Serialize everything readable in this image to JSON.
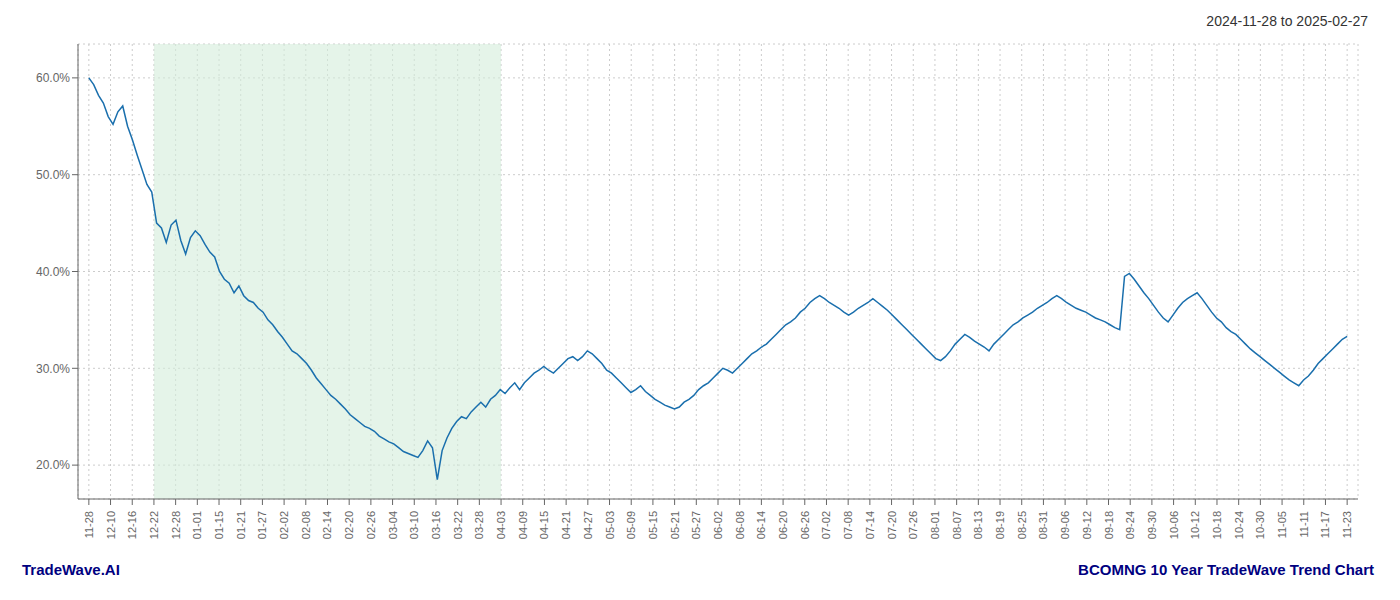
{
  "chart_data": {
    "type": "line",
    "title": "2024-11-28 to 2025-02-27",
    "annotations": [
      {
        "text": "TradeWave.AI",
        "color": "#000080"
      },
      {
        "text": "BCOMNG 10 Year TradeWave Trend Chart",
        "color": "#000080"
      }
    ],
    "color": "#1a6fad",
    "grid": true,
    "highlight": {
      "x": [
        3,
        19
      ],
      "color": "#d4edda"
    },
    "xlim": [
      -0.5,
      58.5
    ],
    "xticks": [
      {
        "value": 0,
        "label": "11-28"
      },
      {
        "value": 1,
        "label": "12-10"
      },
      {
        "value": 2,
        "label": "12-16"
      },
      {
        "value": 3,
        "label": "12-22"
      },
      {
        "value": 4,
        "label": "12-28"
      },
      {
        "value": 5,
        "label": "01-01"
      },
      {
        "value": 6,
        "label": "01-15"
      },
      {
        "value": 7,
        "label": "01-21"
      },
      {
        "value": 8,
        "label": "01-27"
      },
      {
        "value": 9,
        "label": "02-02"
      },
      {
        "value": 10,
        "label": "02-08"
      },
      {
        "value": 11,
        "label": "02-14"
      },
      {
        "value": 12,
        "label": "02-20"
      },
      {
        "value": 13,
        "label": "02-26"
      },
      {
        "value": 14,
        "label": "03-04"
      },
      {
        "value": 15,
        "label": "03-10"
      },
      {
        "value": 16,
        "label": "03-16"
      },
      {
        "value": 17,
        "label": "03-22"
      },
      {
        "value": 18,
        "label": "03-28"
      },
      {
        "value": 19,
        "label": "04-03"
      },
      {
        "value": 20,
        "label": "04-09"
      },
      {
        "value": 21,
        "label": "04-15"
      },
      {
        "value": 22,
        "label": "04-21"
      },
      {
        "value": 23,
        "label": "04-27"
      },
      {
        "value": 24,
        "label": "05-03"
      },
      {
        "value": 25,
        "label": "05-09"
      },
      {
        "value": 26,
        "label": "05-15"
      },
      {
        "value": 27,
        "label": "05-21"
      },
      {
        "value": 28,
        "label": "05-27"
      },
      {
        "value": 29,
        "label": "06-02"
      },
      {
        "value": 30,
        "label": "06-08"
      },
      {
        "value": 31,
        "label": "06-14"
      },
      {
        "value": 32,
        "label": "06-20"
      },
      {
        "value": 33,
        "label": "06-26"
      },
      {
        "value": 34,
        "label": "07-02"
      },
      {
        "value": 35,
        "label": "07-08"
      },
      {
        "value": 36,
        "label": "07-14"
      },
      {
        "value": 37,
        "label": "07-20"
      },
      {
        "value": 38,
        "label": "07-26"
      },
      {
        "value": 39,
        "label": "08-01"
      },
      {
        "value": 40,
        "label": "08-07"
      },
      {
        "value": 41,
        "label": "08-13"
      },
      {
        "value": 42,
        "label": "08-19"
      },
      {
        "value": 43,
        "label": "08-25"
      },
      {
        "value": 44,
        "label": "08-31"
      },
      {
        "value": 45,
        "label": "09-06"
      },
      {
        "value": 46,
        "label": "09-12"
      },
      {
        "value": 47,
        "label": "09-18"
      },
      {
        "value": 48,
        "label": "09-24"
      },
      {
        "value": 49,
        "label": "09-30"
      },
      {
        "value": 50,
        "label": "10-06"
      },
      {
        "value": 51,
        "label": "10-12"
      },
      {
        "value": 52,
        "label": "10-18"
      },
      {
        "value": 53,
        "label": "10-24"
      },
      {
        "value": 54,
        "label": "10-30"
      },
      {
        "value": 55,
        "label": "11-05"
      },
      {
        "value": 56,
        "label": "11-11"
      },
      {
        "value": 57,
        "label": "11-17"
      },
      {
        "value": 58,
        "label": "11-23"
      }
    ],
    "ylim": [
      0.165,
      0.635
    ],
    "yticks": [
      {
        "value": 0.2,
        "label": "20.0%"
      },
      {
        "value": 0.3,
        "label": "30.0%"
      },
      {
        "value": 0.4,
        "label": "40.0%"
      },
      {
        "value": 0.5,
        "label": "50.0%"
      },
      {
        "value": 0.6,
        "label": "60.0%"
      }
    ],
    "values": [
      0.6,
      0.593,
      0.582,
      0.574,
      0.56,
      0.552,
      0.565,
      0.571,
      0.55,
      0.536,
      0.52,
      0.505,
      0.49,
      0.482,
      0.45,
      0.445,
      0.43,
      0.448,
      0.453,
      0.432,
      0.418,
      0.435,
      0.442,
      0.437,
      0.428,
      0.42,
      0.415,
      0.4,
      0.392,
      0.388,
      0.378,
      0.385,
      0.375,
      0.37,
      0.368,
      0.362,
      0.358,
      0.35,
      0.345,
      0.338,
      0.332,
      0.325,
      0.318,
      0.315,
      0.31,
      0.305,
      0.298,
      0.29,
      0.284,
      0.278,
      0.272,
      0.268,
      0.263,
      0.258,
      0.252,
      0.248,
      0.244,
      0.24,
      0.238,
      0.235,
      0.23,
      0.227,
      0.224,
      0.222,
      0.218,
      0.214,
      0.212,
      0.21,
      0.208,
      0.215,
      0.225,
      0.218,
      0.185,
      0.215,
      0.228,
      0.238,
      0.245,
      0.25,
      0.248,
      0.255,
      0.26,
      0.265,
      0.26,
      0.268,
      0.272,
      0.278,
      0.274,
      0.28,
      0.285,
      0.278,
      0.285,
      0.29,
      0.295,
      0.298,
      0.302,
      0.298,
      0.295,
      0.3,
      0.305,
      0.31,
      0.312,
      0.308,
      0.312,
      0.318,
      0.315,
      0.31,
      0.305,
      0.298,
      0.295,
      0.29,
      0.285,
      0.28,
      0.275,
      0.278,
      0.282,
      0.276,
      0.272,
      0.268,
      0.265,
      0.262,
      0.26,
      0.258,
      0.26,
      0.265,
      0.268,
      0.272,
      0.278,
      0.282,
      0.285,
      0.29,
      0.295,
      0.3,
      0.298,
      0.295,
      0.3,
      0.305,
      0.31,
      0.315,
      0.318,
      0.322,
      0.325,
      0.33,
      0.335,
      0.34,
      0.345,
      0.348,
      0.352,
      0.358,
      0.362,
      0.368,
      0.372,
      0.375,
      0.372,
      0.368,
      0.365,
      0.362,
      0.358,
      0.355,
      0.358,
      0.362,
      0.365,
      0.368,
      0.372,
      0.368,
      0.364,
      0.36,
      0.355,
      0.35,
      0.345,
      0.34,
      0.335,
      0.33,
      0.325,
      0.32,
      0.315,
      0.31,
      0.308,
      0.312,
      0.318,
      0.325,
      0.33,
      0.335,
      0.332,
      0.328,
      0.325,
      0.322,
      0.318,
      0.325,
      0.33,
      0.335,
      0.34,
      0.345,
      0.348,
      0.352,
      0.355,
      0.358,
      0.362,
      0.365,
      0.368,
      0.372,
      0.375,
      0.372,
      0.368,
      0.365,
      0.362,
      0.36,
      0.358,
      0.355,
      0.352,
      0.35,
      0.348,
      0.345,
      0.342,
      0.34,
      0.395,
      0.398,
      0.392,
      0.385,
      0.378,
      0.372,
      0.365,
      0.358,
      0.352,
      0.348,
      0.355,
      0.362,
      0.368,
      0.372,
      0.375,
      0.378,
      0.372,
      0.365,
      0.358,
      0.352,
      0.348,
      0.342,
      0.338,
      0.335,
      0.33,
      0.325,
      0.32,
      0.316,
      0.312,
      0.308,
      0.304,
      0.3,
      0.296,
      0.292,
      0.288,
      0.285,
      0.282,
      0.288,
      0.292,
      0.298,
      0.305,
      0.31,
      0.315,
      0.32,
      0.325,
      0.33,
      0.333
    ]
  }
}
